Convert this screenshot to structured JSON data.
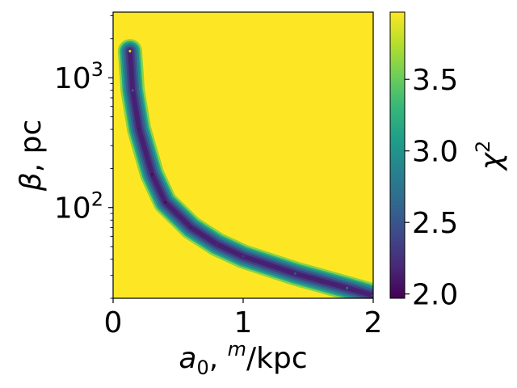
{
  "chart_data": {
    "type": "heatmap",
    "title": "",
    "xlabel_var": "a",
    "xlabel_sub": "0",
    "xlabel_sep": ", ",
    "xlabel_sup": "m",
    "xlabel_unit": "/kpc",
    "ylabel_var": "β",
    "ylabel_unit": ", pc",
    "colorbar_label_var": "χ",
    "colorbar_label_sup": "2",
    "x_scale": "linear",
    "y_scale": "log",
    "xlim": [
      0,
      2
    ],
    "ylim": [
      20,
      3200
    ],
    "x_ticks": [
      {
        "value": 0,
        "label": "0"
      },
      {
        "value": 1,
        "label": "1"
      },
      {
        "value": 2,
        "label": "2"
      }
    ],
    "y_ticks": [
      {
        "value": 100,
        "base": "10",
        "exp": "2"
      },
      {
        "value": 1000,
        "base": "10",
        "exp": "3"
      }
    ],
    "colorbar_range": [
      1.97,
      3.97
    ],
    "colorbar_ticks": [
      {
        "value": 2.0,
        "label": "2.0"
      },
      {
        "value": 2.5,
        "label": "2.5"
      },
      {
        "value": 3.0,
        "label": "3.0"
      },
      {
        "value": 3.5,
        "label": "3.5"
      }
    ],
    "colormap": "viridis",
    "colormap_stops": [
      "#440154",
      "#482878",
      "#3e4989",
      "#31688e",
      "#26828e",
      "#1f9e89",
      "#35b779",
      "#6ece58",
      "#b5de2b",
      "#fde725"
    ],
    "background_value": 3.97,
    "valley_ridge": [
      {
        "a0": 0.13,
        "beta": 1600,
        "chi2": 3.9
      },
      {
        "a0": 0.15,
        "beta": 800,
        "chi2": 2.6
      },
      {
        "a0": 0.2,
        "beta": 400,
        "chi2": 2.1
      },
      {
        "a0": 0.3,
        "beta": 180,
        "chi2": 2.0
      },
      {
        "a0": 0.4,
        "beta": 110,
        "chi2": 2.0
      },
      {
        "a0": 0.6,
        "beta": 70,
        "chi2": 2.1
      },
      {
        "a0": 0.8,
        "beta": 52,
        "chi2": 2.2
      },
      {
        "a0": 1.0,
        "beta": 42,
        "chi2": 2.3
      },
      {
        "a0": 1.4,
        "beta": 31,
        "chi2": 2.5
      },
      {
        "a0": 1.8,
        "beta": 24,
        "chi2": 2.8
      },
      {
        "a0": 2.0,
        "beta": 21,
        "chi2": 3.1
      }
    ],
    "grid": false,
    "legend": "none"
  }
}
